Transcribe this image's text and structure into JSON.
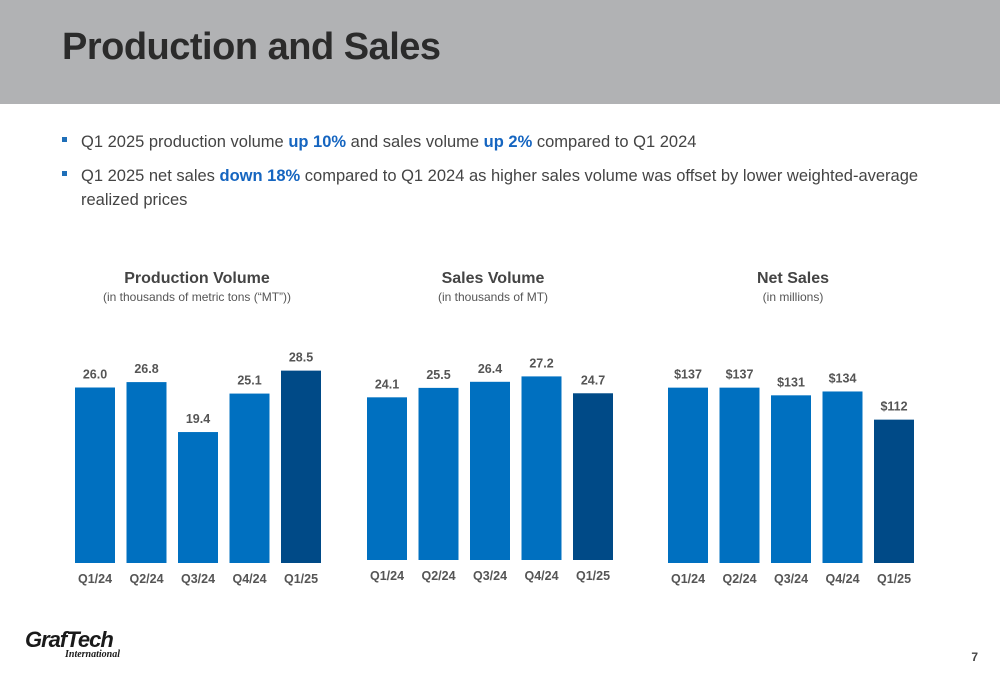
{
  "slide": {
    "title": "Production and Sales",
    "page_number": "7"
  },
  "bullets": [
    {
      "parts": [
        {
          "text": "Q1 2025 production volume ",
          "hl": false
        },
        {
          "text": "up 10%",
          "hl": true
        },
        {
          "text": " and sales volume ",
          "hl": false
        },
        {
          "text": "up 2%",
          "hl": true
        },
        {
          "text": " compared to Q1 2024",
          "hl": false
        }
      ]
    },
    {
      "parts": [
        {
          "text": "Q1 2025 net sales ",
          "hl": false
        },
        {
          "text": "down 18%",
          "hl": true
        },
        {
          "text": " compared to Q1 2024 as higher sales volume was offset by lower weighted-average realized prices",
          "hl": false
        }
      ]
    }
  ],
  "colors": {
    "bar": "#0070c0",
    "bar_latest": "#004a87",
    "highlight": "#1565c0",
    "header_band": "#b1b2b4"
  },
  "logo": {
    "name": "GrafTech",
    "sub": "International"
  },
  "chart_data": [
    {
      "type": "bar",
      "title": "Production Volume",
      "subtitle": "(in thousands of metric tons (“MT”))",
      "categories": [
        "Q1/24",
        "Q2/24",
        "Q3/24",
        "Q4/24",
        "Q1/25"
      ],
      "values": [
        26.0,
        26.8,
        19.4,
        25.1,
        28.5
      ],
      "labels": [
        "26.0",
        "26.8",
        "19.4",
        "25.1",
        "28.5"
      ],
      "highlight_index": 4
    },
    {
      "type": "bar",
      "title": "Sales Volume",
      "subtitle": "(in thousands of MT)",
      "categories": [
        "Q1/24",
        "Q2/24",
        "Q3/24",
        "Q4/24",
        "Q1/25"
      ],
      "values": [
        24.1,
        25.5,
        26.4,
        27.2,
        24.7
      ],
      "labels": [
        "24.1",
        "25.5",
        "26.4",
        "27.2",
        "24.7"
      ],
      "highlight_index": 4
    },
    {
      "type": "bar",
      "title": "Net Sales",
      "subtitle": "(in millions)",
      "categories": [
        "Q1/24",
        "Q2/24",
        "Q3/24",
        "Q4/24",
        "Q1/25"
      ],
      "values": [
        137,
        137,
        131,
        134,
        112
      ],
      "labels": [
        "$137",
        "$137",
        "$131",
        "$134",
        "$112"
      ],
      "highlight_index": 4
    }
  ]
}
